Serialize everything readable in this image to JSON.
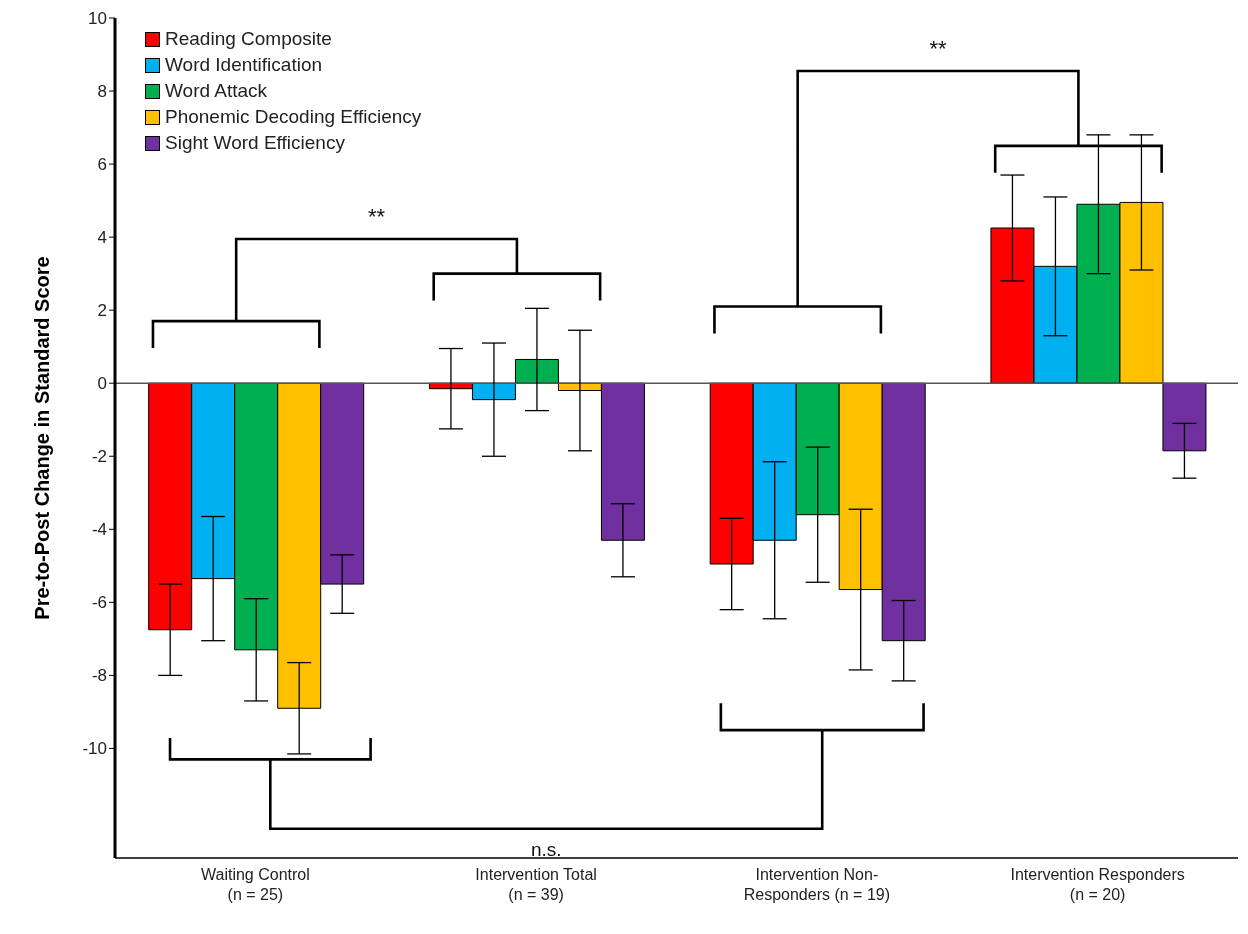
{
  "chart_data": {
    "type": "bar",
    "ylabel": "Pre-to-Post Change in Standard Score",
    "categories": [
      "Waiting Control\n(n = 25)",
      "Intervention Total\n(n = 39)",
      "Intervention Non-\nResponders (n = 19)",
      "Intervention Responders\n(n = 20)"
    ],
    "series": [
      {
        "name": "Reading Composite",
        "color": "#ff0000",
        "values": [
          -6.75,
          -0.15,
          -4.95,
          4.25
        ],
        "errors": [
          1.25,
          1.1,
          1.25,
          1.45
        ]
      },
      {
        "name": "Word Identification",
        "color": "#00b0f0",
        "values": [
          -5.35,
          -0.45,
          -4.3,
          3.2
        ],
        "errors": [
          1.7,
          1.55,
          2.15,
          1.9
        ]
      },
      {
        "name": "Word Attack",
        "color": "#00b050",
        "values": [
          -7.3,
          0.65,
          -3.6,
          4.9
        ],
        "errors": [
          1.4,
          1.4,
          1.85,
          1.9
        ]
      },
      {
        "name": "Phonemic Decoding Efficiency",
        "color": "#ffc000",
        "values": [
          -8.9,
          -0.2,
          -5.65,
          4.95
        ],
        "errors": [
          1.25,
          1.65,
          2.2,
          1.85
        ]
      },
      {
        "name": "Sight Word Efficiency",
        "color": "#7030a0",
        "values": [
          -5.5,
          -4.3,
          -7.05,
          -1.85
        ],
        "errors": [
          0.8,
          1.0,
          1.1,
          0.75
        ]
      }
    ],
    "ylim": [
      -13,
      10
    ],
    "yticks": [
      -10,
      -8,
      -6,
      -4,
      -2,
      0,
      2,
      4,
      6,
      8,
      10
    ],
    "ref_lines": [
      {
        "axis": "y",
        "value": 0,
        "color": "#555555"
      }
    ],
    "annotations": [
      "**",
      "**",
      "n.s."
    ],
    "grid": false,
    "legend": "top left"
  }
}
